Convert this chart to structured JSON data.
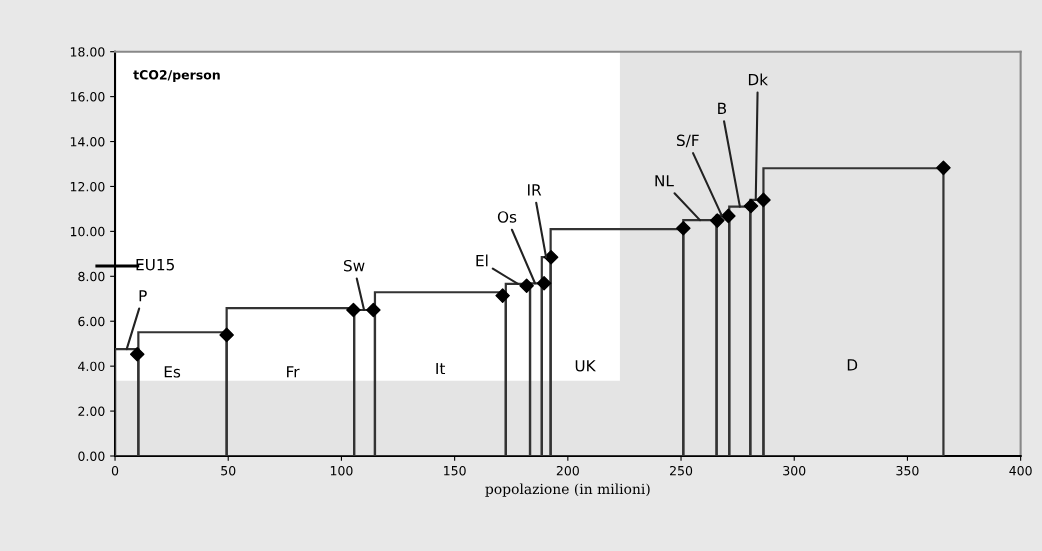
{
  "chart_data": {
    "type": "bar",
    "xlabel": "popolazione (in milioni)",
    "ylabel": "tCO2/person",
    "series": [
      {
        "color": "#333333",
        "x": [
          5.15,
          29.8,
          77.45,
          110.2,
          143.7,
          177.95,
          185.9,
          190.45,
          221.7,
          258.35,
          268.5,
          275.95,
          283.5,
          326.15
        ],
        "values": [
          4.76,
          5.51,
          6.58,
          6.5,
          7.29,
          7.66,
          7.69,
          8.85,
          10.1,
          10.5,
          10.7,
          11.1,
          11.4,
          12.81
        ]
      },
      {
        "type": "scatter",
        "marker": "diamond",
        "color": "#000000",
        "x": [
          9.8,
          49.3,
          105.3,
          114.1,
          171.2,
          181.8,
          189.5,
          192.6,
          251,
          266,
          270.9,
          280.9,
          286.4,
          365.9
        ],
        "values": [
          4.53,
          5.39,
          6.5,
          6.5,
          7.14,
          7.58,
          7.69,
          8.85,
          10.14,
          10.48,
          10.69,
          11.13,
          11.4,
          12.83
        ]
      }
    ],
    "xlim": [
      0,
      400
    ],
    "xticks": [
      0,
      50,
      100,
      150,
      200,
      250,
      300,
      350,
      400
    ],
    "ylim": [
      0,
      18
    ],
    "yticks": [
      {
        "value": 0,
        "label": "0.00"
      },
      {
        "value": 2,
        "label": "2.00"
      },
      {
        "value": 4,
        "label": "4.00"
      },
      {
        "value": 6,
        "label": "6.00"
      },
      {
        "value": 8,
        "label": "8.00"
      },
      {
        "value": 10,
        "label": "10.00"
      },
      {
        "value": 12,
        "label": "12.00"
      },
      {
        "value": 14,
        "label": "14.00"
      },
      {
        "value": 16,
        "label": "16.00"
      },
      {
        "value": 18,
        "label": "18.00"
      }
    ],
    "bands": [
      {
        "axis": "x",
        "from": 223,
        "to": 400,
        "color": "#e4e4e4"
      },
      {
        "axis": "y",
        "from": 0,
        "to": 3.35,
        "color": "#e4e4e4"
      }
    ],
    "ref_lines": [
      {
        "axis": "y",
        "value": 8.46,
        "label": "EU15",
        "color": "#000000"
      }
    ],
    "annotations": [
      {
        "text": "P",
        "x": 5.15,
        "y": 4.76
      },
      {
        "text": "Sw",
        "x": 110,
        "y": 6.5
      },
      {
        "text": "El",
        "x": 177.95,
        "y": 7.66
      },
      {
        "text": "Os",
        "x": 185.5,
        "y": 7.69
      },
      {
        "text": "IR",
        "x": 190.4,
        "y": 8.85
      },
      {
        "text": "NL",
        "x": 258.35,
        "y": 10.5
      },
      {
        "text": "S/F",
        "x": 268,
        "y": 10.7
      },
      {
        "text": "B",
        "x": 276,
        "y": 11.1
      },
      {
        "text": "Dk",
        "x": 283,
        "y": 11.4
      },
      "Es",
      "Fr",
      "It",
      "UK",
      "D"
    ],
    "grid": false,
    "legend": false
  }
}
